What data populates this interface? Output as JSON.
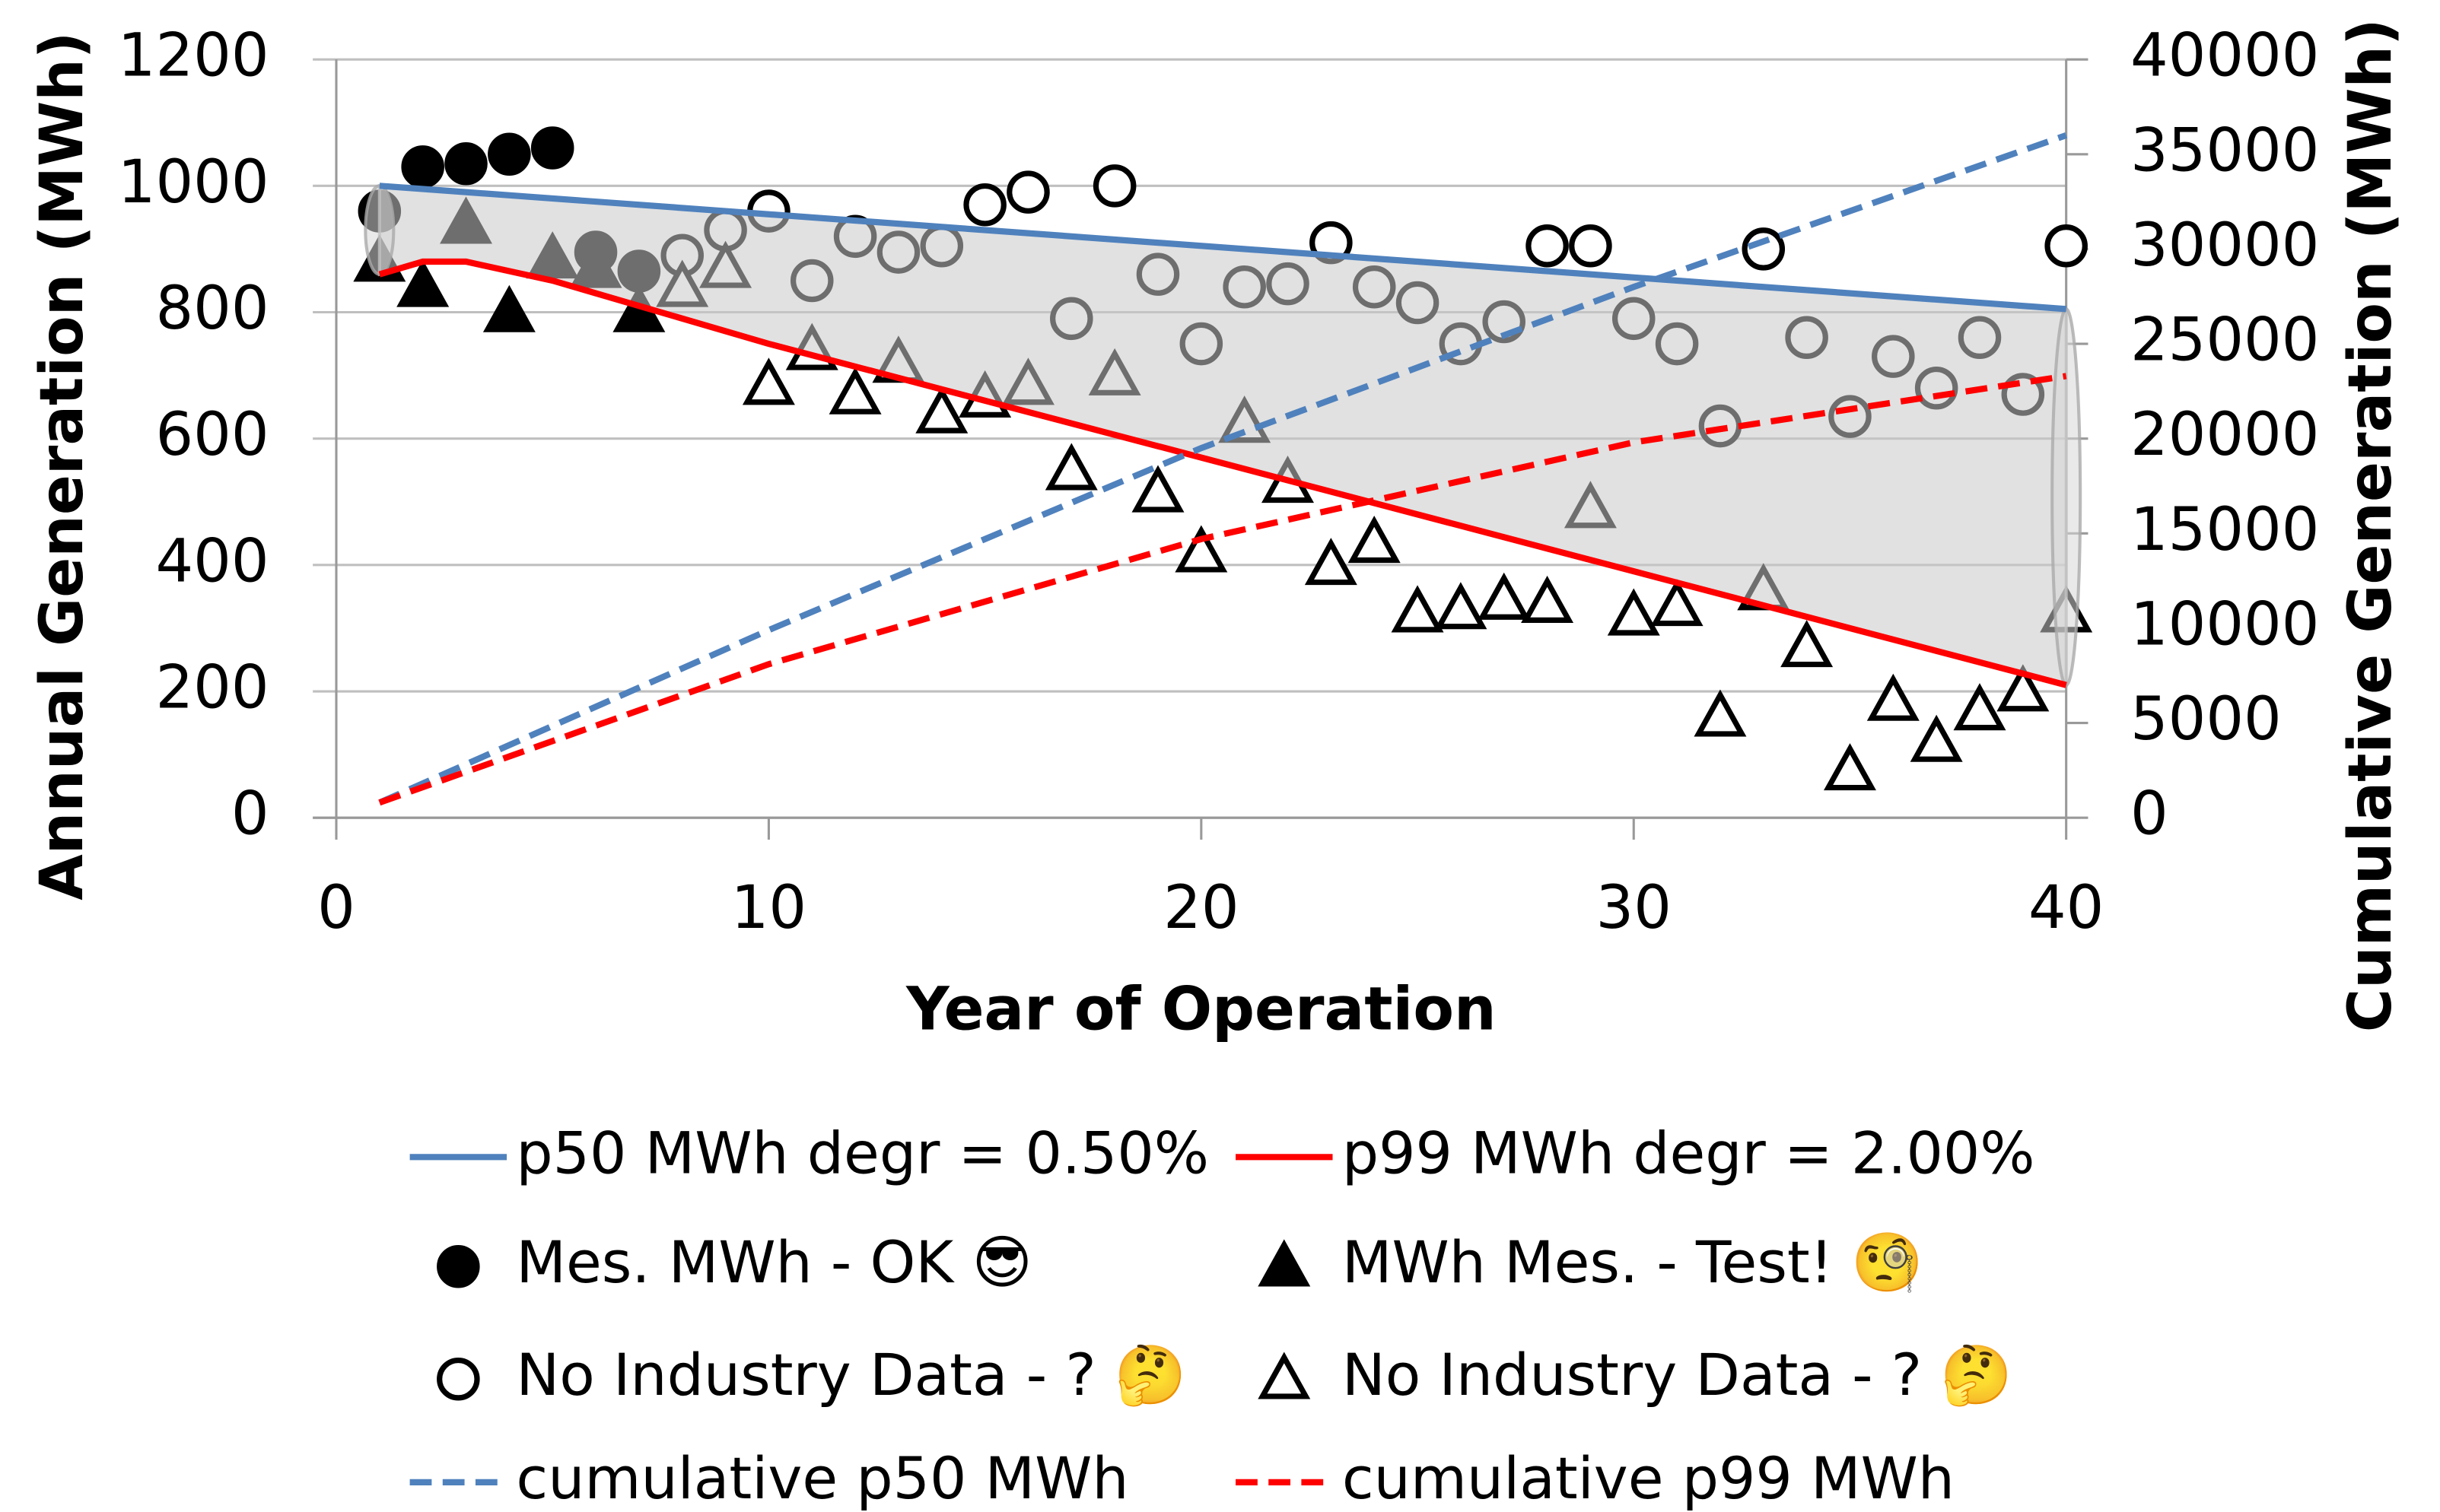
{
  "chart_data": {
    "type": "combo",
    "xlabel": "Year of Operation",
    "ylabel": "Annual Generation (MWh)",
    "y2label": "Cumulative Generation (MWh)",
    "xlim": [
      0,
      40
    ],
    "xticks": [
      0,
      10,
      20,
      30,
      40
    ],
    "ylim": [
      0,
      1200
    ],
    "yticks": [
      0,
      200,
      400,
      600,
      800,
      1000,
      1200
    ],
    "y2lim": [
      0,
      40000
    ],
    "y2ticks": [
      0,
      5000,
      10000,
      15000,
      20000,
      25000,
      30000,
      35000,
      40000
    ],
    "grid": true,
    "legend": "bottom",
    "series": [
      {
        "name": "p50 MWh degr = 0.50%",
        "type": "line",
        "color": "#4f81bd",
        "dash": false,
        "x": [
          1,
          40
        ],
        "values": [
          1000,
          805
        ]
      },
      {
        "name": "p99 MWh degr = 2.00%",
        "type": "line",
        "color": "#ff0000",
        "dash": false,
        "x": [
          1,
          2,
          3,
          5,
          10,
          20,
          30,
          40
        ],
        "values": [
          860,
          880,
          880,
          850,
          750,
          570,
          390,
          210
        ]
      },
      {
        "name": "Mes. MWh - OK 😎",
        "type": "scatter",
        "marker": "circle",
        "filled": true,
        "color": "#000000",
        "x": [
          1,
          2,
          3,
          4,
          5,
          6,
          7
        ],
        "values": [
          960,
          1030,
          1035,
          1050,
          1060,
          895,
          865
        ]
      },
      {
        "name": "MWh Mes. - Test! 🧐",
        "type": "scatter",
        "marker": "triangle",
        "filled": true,
        "color": "#000000",
        "x": [
          1,
          2,
          3,
          4,
          5,
          6,
          7
        ],
        "values": [
          880,
          840,
          940,
          800,
          885,
          870,
          800
        ]
      },
      {
        "name": "No Industry Data - ? 🤔",
        "type": "scatter",
        "marker": "circle",
        "filled": false,
        "color": "#000000",
        "x": [
          8,
          9,
          10,
          11,
          12,
          13,
          14,
          15,
          16,
          17,
          18,
          19,
          20,
          21,
          22,
          23,
          24,
          25,
          26,
          27,
          28,
          29,
          30,
          31,
          32,
          33,
          34,
          35,
          36,
          37,
          38,
          39,
          40
        ],
        "values": [
          890,
          930,
          960,
          850,
          920,
          895,
          905,
          970,
          990,
          790,
          1000,
          860,
          750,
          840,
          845,
          910,
          840,
          815,
          750,
          785,
          905,
          905,
          790,
          750,
          620,
          900,
          760,
          635,
          730,
          680,
          760,
          670,
          905
        ]
      },
      {
        "name": "No Industry Data - ? 🤔",
        "type": "scatter",
        "marker": "triangle",
        "filled": false,
        "color": "#000000",
        "x": [
          8,
          9,
          10,
          11,
          12,
          13,
          14,
          15,
          16,
          17,
          18,
          19,
          20,
          21,
          22,
          23,
          24,
          25,
          26,
          27,
          28,
          29,
          30,
          31,
          32,
          33,
          34,
          35,
          36,
          37,
          38,
          39,
          40
        ],
        "values": [
          840,
          870,
          685,
          740,
          670,
          720,
          640,
          665,
          685,
          550,
          700,
          515,
          420,
          625,
          530,
          400,
          435,
          325,
          330,
          345,
          340,
          490,
          320,
          335,
          160,
          360,
          270,
          75,
          185,
          120,
          170,
          200,
          325
        ]
      },
      {
        "name": "cumulative p50 MWh",
        "type": "line",
        "axis": "y2",
        "color": "#4f81bd",
        "dash": true,
        "x": [
          1,
          10,
          20,
          30,
          40
        ],
        "values": [
          800,
          9900,
          19500,
          28000,
          36000
        ]
      },
      {
        "name": "cumulative p99 MWh",
        "type": "line",
        "axis": "y2",
        "color": "#ff0000",
        "dash": true,
        "x": [
          1,
          10,
          20,
          30,
          40
        ],
        "values": [
          800,
          8100,
          14700,
          19800,
          23300
        ]
      }
    ]
  }
}
